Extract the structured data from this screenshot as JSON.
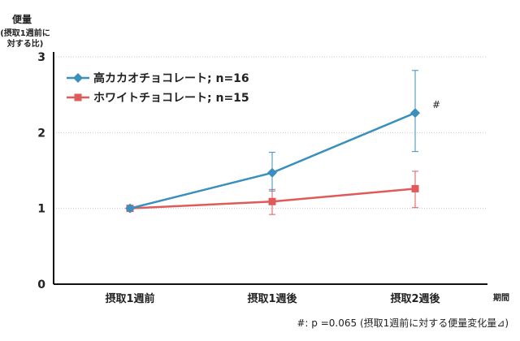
{
  "chart_data": {
    "type": "line",
    "ylabel": "便量",
    "ylabel_sub": [
      "(摂取1週前に",
      "対する比)"
    ],
    "xunit": "期間",
    "categories": [
      "摂取1週前",
      "摂取1週後",
      "摂取2週後"
    ],
    "ylim": [
      0,
      3
    ],
    "yticks": [
      "0",
      "1",
      "2",
      "3"
    ],
    "grid": "horizontal dotted",
    "legend_position": "top-left",
    "series": [
      {
        "name": "高カカオチョコレート; n=16",
        "color": "#3a8fbd",
        "marker": "diamond",
        "values": [
          1.0,
          1.47,
          2.26
        ],
        "err_low": [
          1.0,
          1.23,
          1.75
        ],
        "err_high": [
          1.0,
          1.74,
          2.82
        ]
      },
      {
        "name": "ホワイトチョコレート; n=15",
        "color": "#e05a5a",
        "marker": "square",
        "values": [
          1.0,
          1.09,
          1.26
        ],
        "err_low": [
          1.0,
          0.92,
          1.01
        ],
        "err_high": [
          1.0,
          1.25,
          1.49
        ]
      }
    ],
    "annotations": [
      "#"
    ],
    "note": "#: p =0.065 (摂取1週前に対する便量変化量⊿)"
  }
}
